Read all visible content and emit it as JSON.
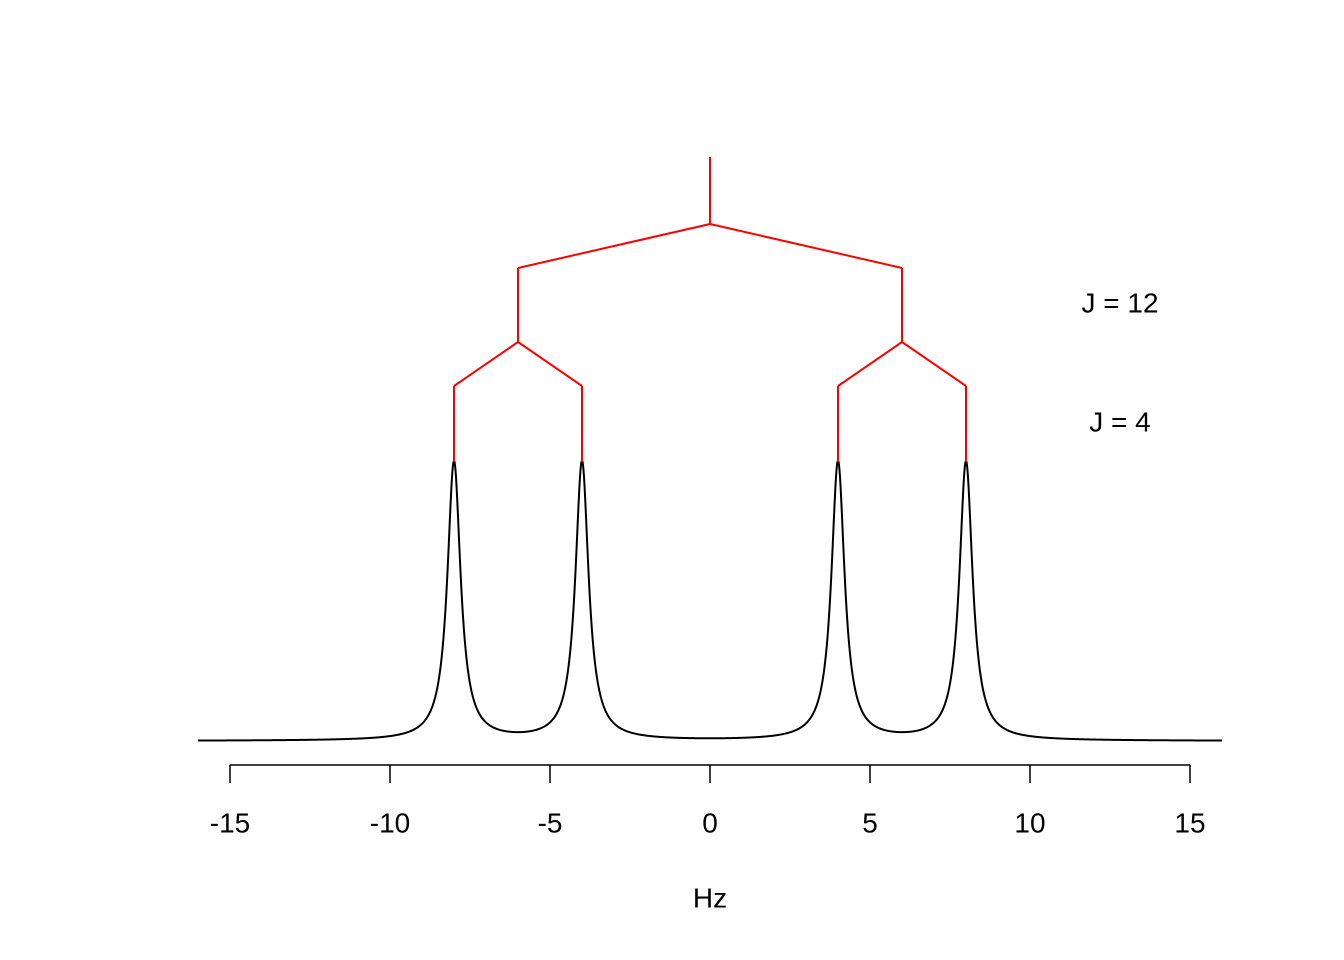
{
  "chart_data": {
    "type": "spectrum",
    "x_label": "Hz",
    "peaks": [
      -8,
      -4,
      4,
      8
    ],
    "color": "#000000",
    "tree_color": "#ff0000",
    "couplings": [
      {
        "value": 12,
        "label": "J = 12"
      },
      {
        "value": 4,
        "label": "J = 4"
      }
    ],
    "xlim": [
      -16,
      16
    ],
    "xticks": [
      -15,
      -10,
      -5,
      0,
      5,
      10,
      15
    ]
  }
}
